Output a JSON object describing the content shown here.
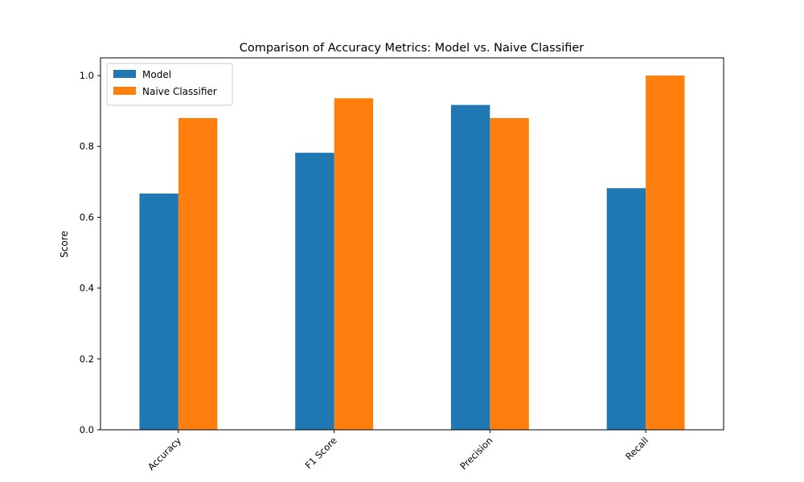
{
  "chart_data": {
    "type": "bar",
    "title": "Comparison of Accuracy Metrics: Model vs. Naive Classifier",
    "xlabel": "",
    "ylabel": "Score",
    "categories": [
      "Accuracy",
      "F1 Score",
      "Precision",
      "Recall"
    ],
    "series": [
      {
        "name": "Model",
        "color": "#1f77b4",
        "values": [
          0.667,
          0.782,
          0.917,
          0.682
        ]
      },
      {
        "name": "Naive Classifier",
        "color": "#ff7f0e",
        "values": [
          0.88,
          0.936,
          0.88,
          1.0
        ]
      }
    ],
    "ylim": [
      0,
      1.05
    ],
    "yticks": [
      0.0,
      0.2,
      0.4,
      0.6,
      0.8,
      1.0
    ],
    "ytick_labels": [
      "0.0",
      "0.2",
      "0.4",
      "0.6",
      "0.8",
      "1.0"
    ],
    "legend_position": "top-left",
    "grid": false
  }
}
